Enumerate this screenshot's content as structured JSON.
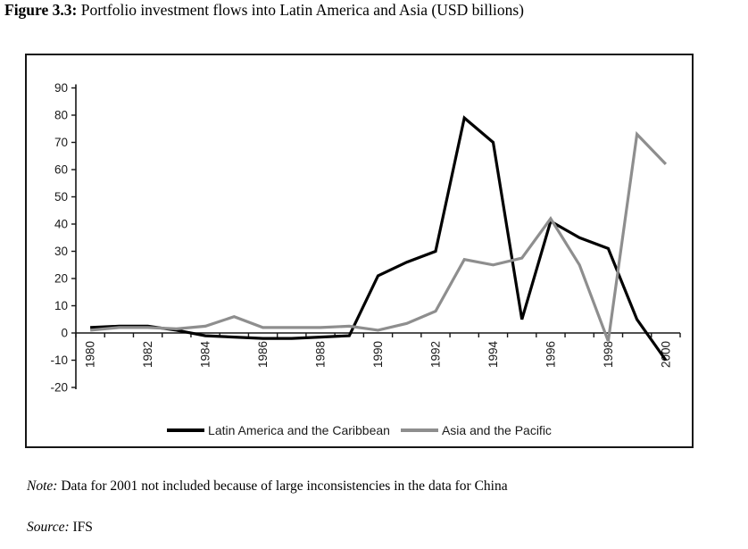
{
  "title": {
    "prefix": "Figure 3.3:",
    "text": " Portfolio investment flows into Latin America and Asia (USD billions)"
  },
  "note": {
    "prefix": "Note:",
    "text": " Data for 2001 not included because of large inconsistencies in the data for China"
  },
  "source": {
    "prefix": "Source:",
    "text": " IFS"
  },
  "colors": {
    "latam": "#000000",
    "asia": "#8e8e8e",
    "axis": "#161616",
    "tick_label": "#1a1a1a"
  },
  "chart_data": {
    "type": "line",
    "title": "Portfolio investment flows into Latin America and Asia (USD billions)",
    "xlabel": "",
    "ylabel": "",
    "x": [
      1980,
      1981,
      1982,
      1983,
      1984,
      1985,
      1986,
      1987,
      1988,
      1989,
      1990,
      1991,
      1992,
      1993,
      1994,
      1995,
      1996,
      1997,
      1998,
      1999,
      2000
    ],
    "series": [
      {
        "name": "Latin America and the Caribbean",
        "color_key": "latam",
        "values": [
          2,
          2.5,
          2.5,
          1,
          -1,
          -1.5,
          -2,
          -2,
          -1.5,
          -1,
          21,
          26,
          30,
          79,
          70,
          5,
          41,
          35,
          31,
          5,
          -10
        ]
      },
      {
        "name": "Asia and the Pacific",
        "color_key": "asia",
        "values": [
          1,
          2,
          2,
          1.5,
          2.5,
          6,
          2,
          2,
          2,
          2.5,
          1,
          3.5,
          8,
          27,
          25,
          27.5,
          42,
          25,
          -3,
          73,
          62
        ]
      }
    ],
    "ylim": [
      -20,
      90
    ],
    "ytick_step": 10,
    "yticks": [
      90,
      80,
      70,
      60,
      50,
      40,
      30,
      20,
      10,
      0,
      -10,
      -20
    ],
    "xlabel_every": 2,
    "x_label_rotation": -90,
    "grid": false,
    "legend_position": "bottom-center"
  }
}
